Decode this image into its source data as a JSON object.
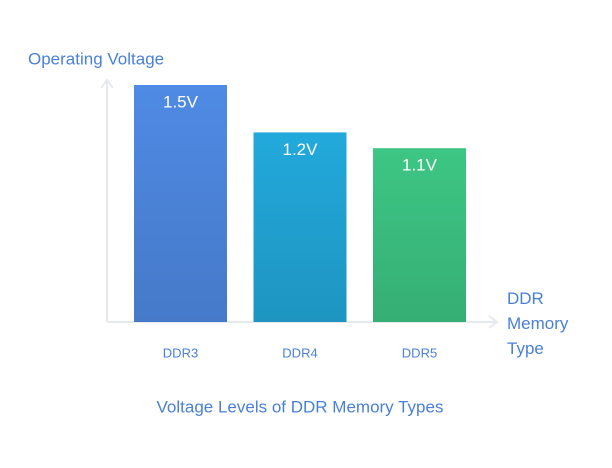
{
  "chart_data": {
    "type": "bar",
    "title": "Voltage Levels of DDR Memory Types",
    "y_label": "Operating Voltage",
    "x_label": "DDR Memory Type",
    "categories": [
      "DDR3",
      "DDR4",
      "DDR5"
    ],
    "values": [
      1.5,
      1.2,
      1.1
    ],
    "value_labels": [
      "1.5V",
      "1.2V",
      "1.1V"
    ],
    "colors": [
      "#4f8ae4",
      "#22a9db",
      "#3dc684"
    ]
  }
}
